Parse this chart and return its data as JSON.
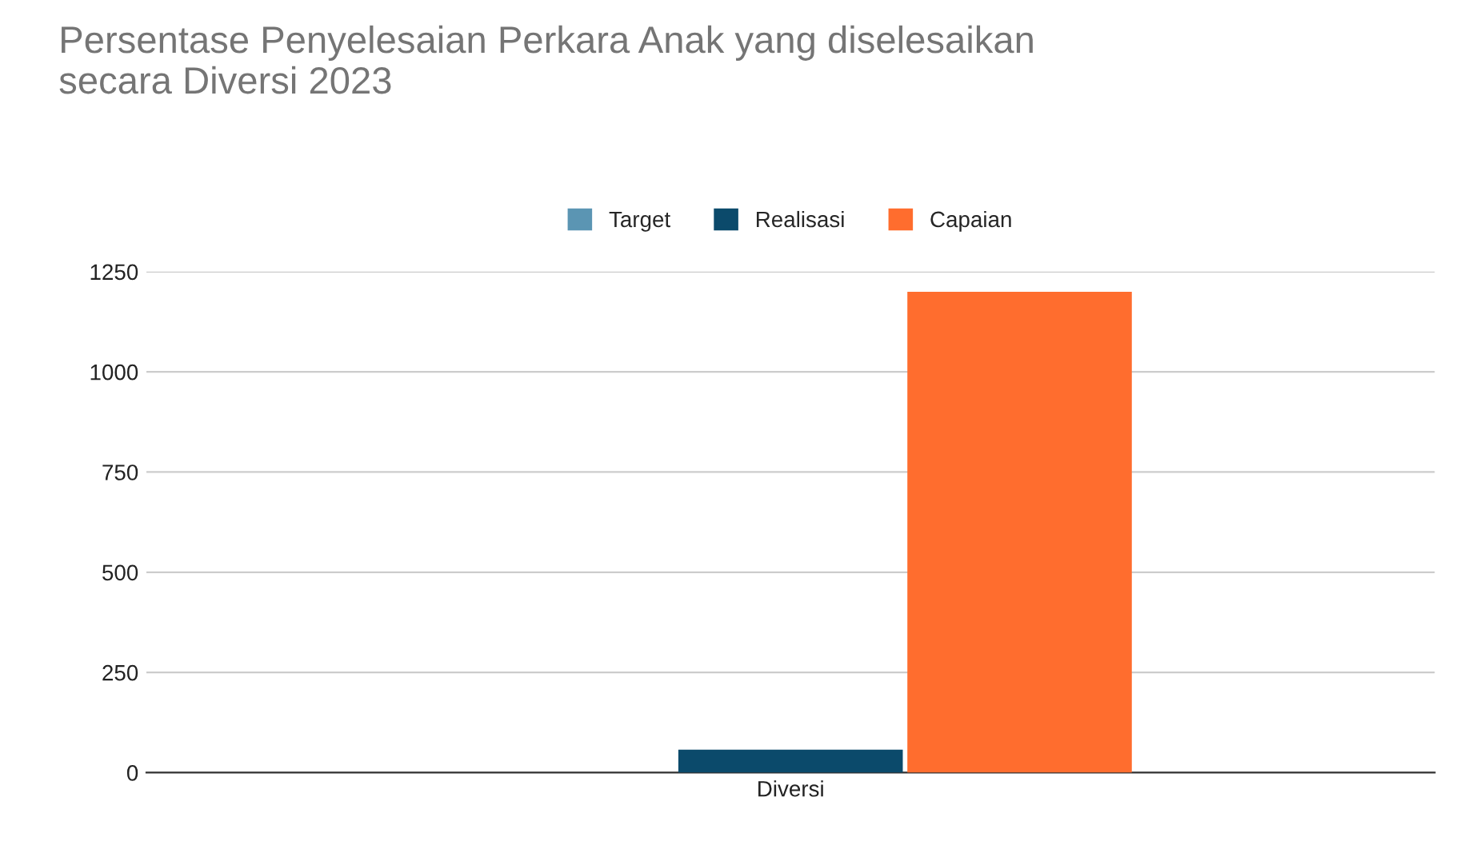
{
  "chart_data": {
    "type": "bar",
    "title": "Persentase Penyelesaian Perkara Anak yang diselesaikan\nsecara Diversi 2023",
    "categories": [
      "Diversi"
    ],
    "series": [
      {
        "name": "Target",
        "color": "#5b95b3",
        "values": [
          null
        ]
      },
      {
        "name": "Realisasi",
        "color": "#0b4a6b",
        "values": [
          57
        ]
      },
      {
        "name": "Capaian",
        "color": "#ff6d2e",
        "values": [
          1200
        ]
      }
    ],
    "ylim": [
      0,
      1250
    ],
    "yticks": [
      0,
      250,
      500,
      750,
      1000,
      1250
    ],
    "grid": "y",
    "legend": "top"
  }
}
